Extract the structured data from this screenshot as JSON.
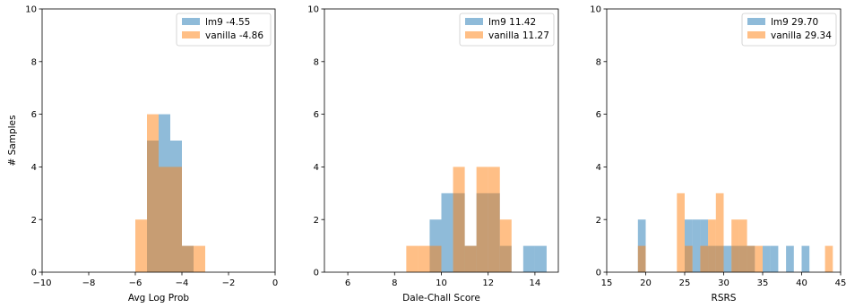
{
  "colors": {
    "lm9": "#1f77b4",
    "vanilla": "#ff7f0e"
  },
  "chart_data": [
    {
      "type": "histogram",
      "xlabel": "Avg Log Prob",
      "ylabel": "# Samples",
      "xlim": [
        -10,
        0
      ],
      "ylim": [
        0,
        10
      ],
      "xticks": [
        -10,
        -8,
        -6,
        -4,
        -2,
        0
      ],
      "xtick_labels": [
        "−10",
        "−8",
        "−6",
        "−4",
        "−2",
        "0"
      ],
      "yticks": [
        0,
        2,
        4,
        6,
        8,
        10
      ],
      "legend_position": "top-right",
      "series": [
        {
          "name": "lm9 -4.55",
          "color": "#1f77b4",
          "bins": [
            [
              -5.5,
              -5.0,
              5
            ],
            [
              -5.0,
              -4.5,
              6
            ],
            [
              -4.5,
              -4.0,
              5
            ],
            [
              -4.0,
              -3.5,
              1
            ]
          ]
        },
        {
          "name": "vanilla -4.86",
          "color": "#ff7f0e",
          "bins": [
            [
              -6.0,
              -5.5,
              2
            ],
            [
              -5.5,
              -5.0,
              6
            ],
            [
              -5.0,
              -4.5,
              4
            ],
            [
              -4.5,
              -4.0,
              4
            ],
            [
              -4.0,
              -3.5,
              1
            ],
            [
              -3.5,
              -3.0,
              1
            ]
          ]
        }
      ]
    },
    {
      "type": "histogram",
      "xlabel": "Dale-Chall Score",
      "ylabel": "",
      "xlim": [
        5,
        15
      ],
      "ylim": [
        0,
        10
      ],
      "xticks": [
        6,
        8,
        10,
        12,
        14
      ],
      "xtick_labels": [
        "6",
        "8",
        "10",
        "12",
        "14"
      ],
      "yticks": [
        0,
        2,
        4,
        6,
        8,
        10
      ],
      "legend_position": "top-right",
      "series": [
        {
          "name": "lm9 11.42",
          "color": "#1f77b4",
          "bins": [
            [
              9.5,
              10.0,
              2
            ],
            [
              10.0,
              10.5,
              3
            ],
            [
              10.5,
              11.0,
              3
            ],
            [
              11.0,
              11.5,
              1
            ],
            [
              11.5,
              12.0,
              3
            ],
            [
              12.0,
              12.5,
              3
            ],
            [
              12.5,
              13.0,
              1
            ],
            [
              13.5,
              14.0,
              1
            ],
            [
              14.0,
              14.5,
              1
            ]
          ]
        },
        {
          "name": "vanilla 11.27",
          "color": "#ff7f0e",
          "bins": [
            [
              8.5,
              9.0,
              1
            ],
            [
              9.0,
              9.5,
              1
            ],
            [
              9.5,
              10.0,
              1
            ],
            [
              10.5,
              11.0,
              4
            ],
            [
              11.0,
              11.5,
              1
            ],
            [
              11.5,
              12.0,
              4
            ],
            [
              12.0,
              12.5,
              4
            ],
            [
              12.5,
              13.0,
              2
            ]
          ]
        }
      ]
    },
    {
      "type": "histogram",
      "xlabel": "RSRS",
      "ylabel": "",
      "xlim": [
        15,
        45
      ],
      "ylim": [
        0,
        10
      ],
      "xticks": [
        15,
        20,
        25,
        30,
        35,
        40,
        45
      ],
      "xtick_labels": [
        "15",
        "20",
        "25",
        "30",
        "35",
        "40",
        "45"
      ],
      "yticks": [
        0,
        2,
        4,
        6,
        8,
        10
      ],
      "legend_position": "top-right",
      "series": [
        {
          "name": "lm9 29.70",
          "color": "#1f77b4",
          "bins": [
            [
              19.0,
              20.0,
              2
            ],
            [
              25.0,
              26.0,
              2
            ],
            [
              26.0,
              27.0,
              2
            ],
            [
              27.0,
              28.0,
              2
            ],
            [
              28.0,
              29.0,
              1
            ],
            [
              29.0,
              30.0,
              1
            ],
            [
              30.0,
              31.0,
              1
            ],
            [
              31.0,
              32.0,
              1
            ],
            [
              32.0,
              33.0,
              1
            ],
            [
              33.0,
              34.0,
              1
            ],
            [
              35.0,
              36.0,
              1
            ],
            [
              36.0,
              37.0,
              1
            ],
            [
              38.0,
              39.0,
              1
            ],
            [
              40.0,
              41.0,
              1
            ]
          ]
        },
        {
          "name": "vanilla 29.34",
          "color": "#ff7f0e",
          "bins": [
            [
              19.0,
              20.0,
              1
            ],
            [
              24.0,
              25.0,
              3
            ],
            [
              25.0,
              26.0,
              1
            ],
            [
              27.0,
              28.0,
              1
            ],
            [
              28.0,
              29.0,
              2
            ],
            [
              29.0,
              30.0,
              3
            ],
            [
              31.0,
              32.0,
              2
            ],
            [
              32.0,
              33.0,
              2
            ],
            [
              33.0,
              34.0,
              1
            ],
            [
              34.0,
              35.0,
              1
            ],
            [
              43.0,
              44.0,
              1
            ]
          ]
        }
      ]
    }
  ]
}
